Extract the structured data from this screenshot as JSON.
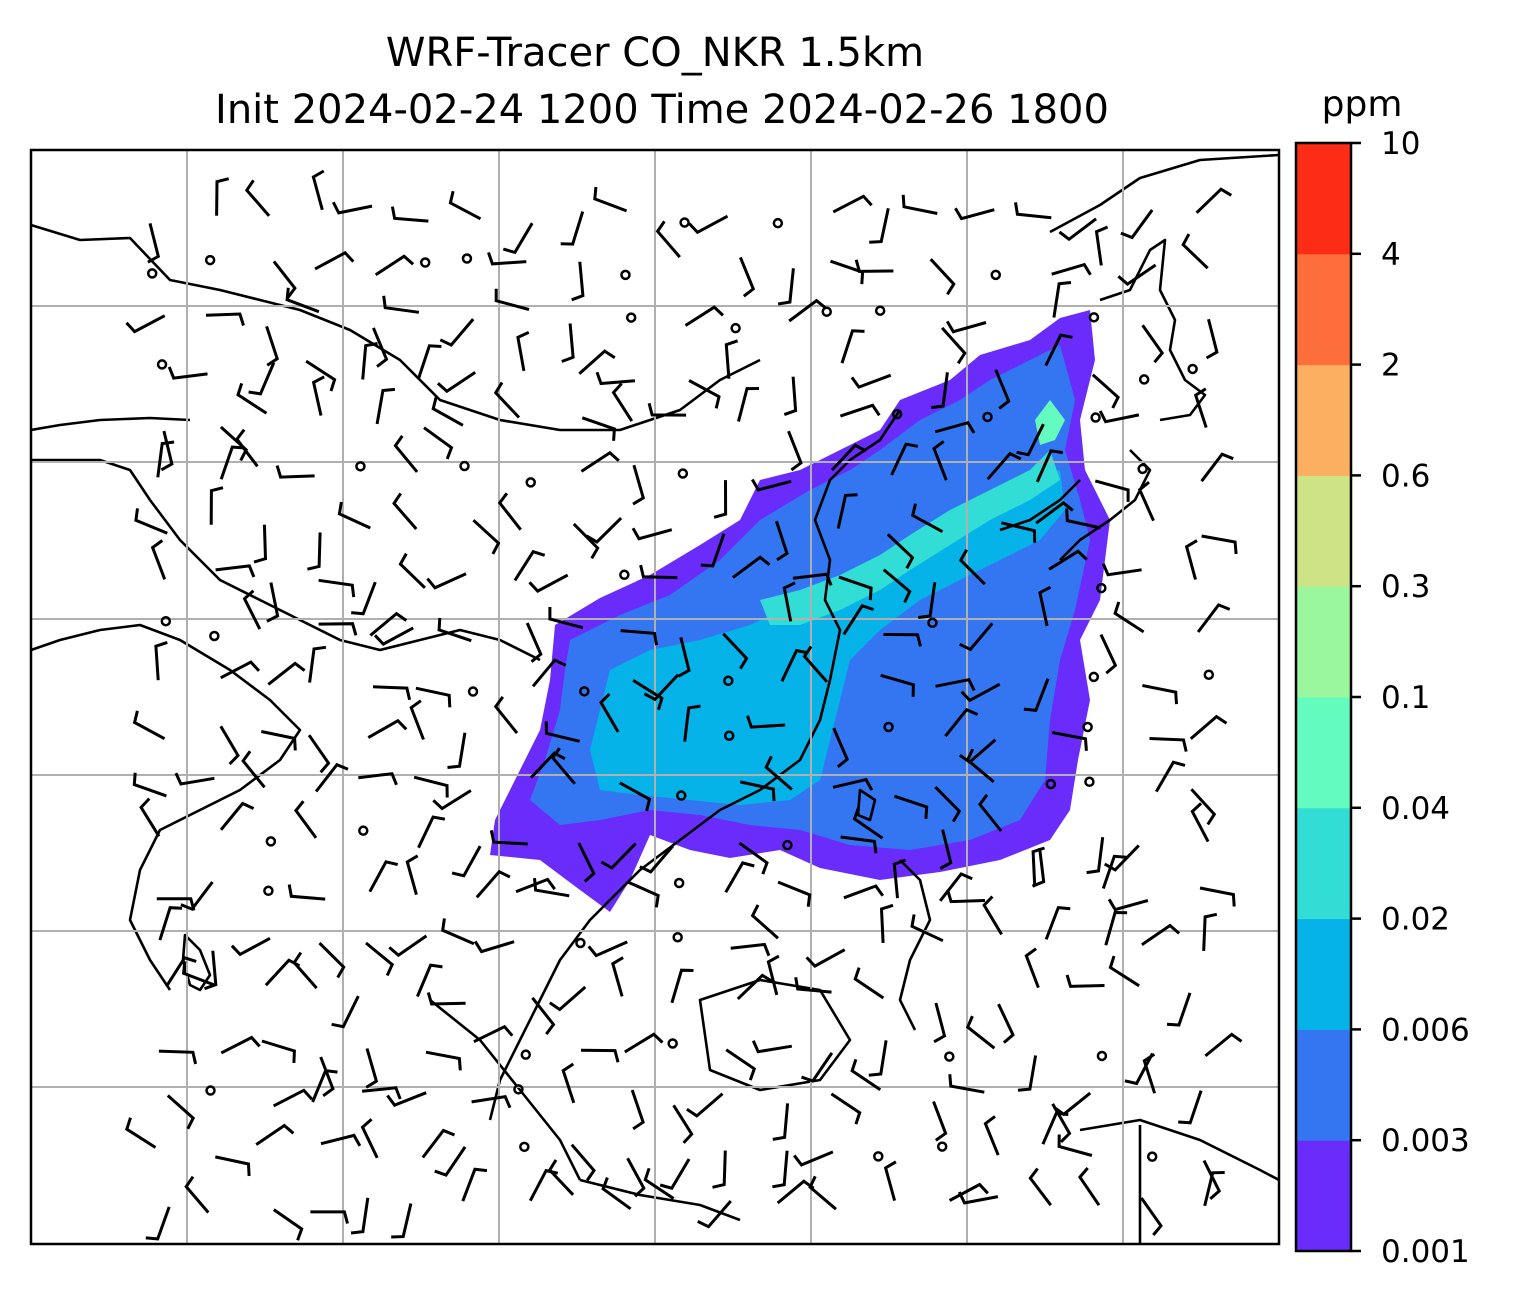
{
  "title_line1": "WRF-Tracer CO_NKR 1.5km",
  "title_line2": "Init 2024-02-24 1200 Time 2024-02-26 1800",
  "colorbar": {
    "unit": "ppm",
    "levels": [
      "0.001",
      "0.003",
      "0.006",
      "0.02",
      "0.04",
      "0.1",
      "0.3",
      "0.6",
      "2",
      "4",
      "10"
    ],
    "colors": [
      "#6a2cfb",
      "#3476f2",
      "#05b3e9",
      "#31ddd4",
      "#63fbbe",
      "#9af79e",
      "#cde386",
      "#fcaf61",
      "#fe6e3a",
      "#fd2c16"
    ]
  },
  "map": {
    "gridlines": true,
    "field": "CO_NKR tracer concentration",
    "overlay": "wind barbs"
  }
}
